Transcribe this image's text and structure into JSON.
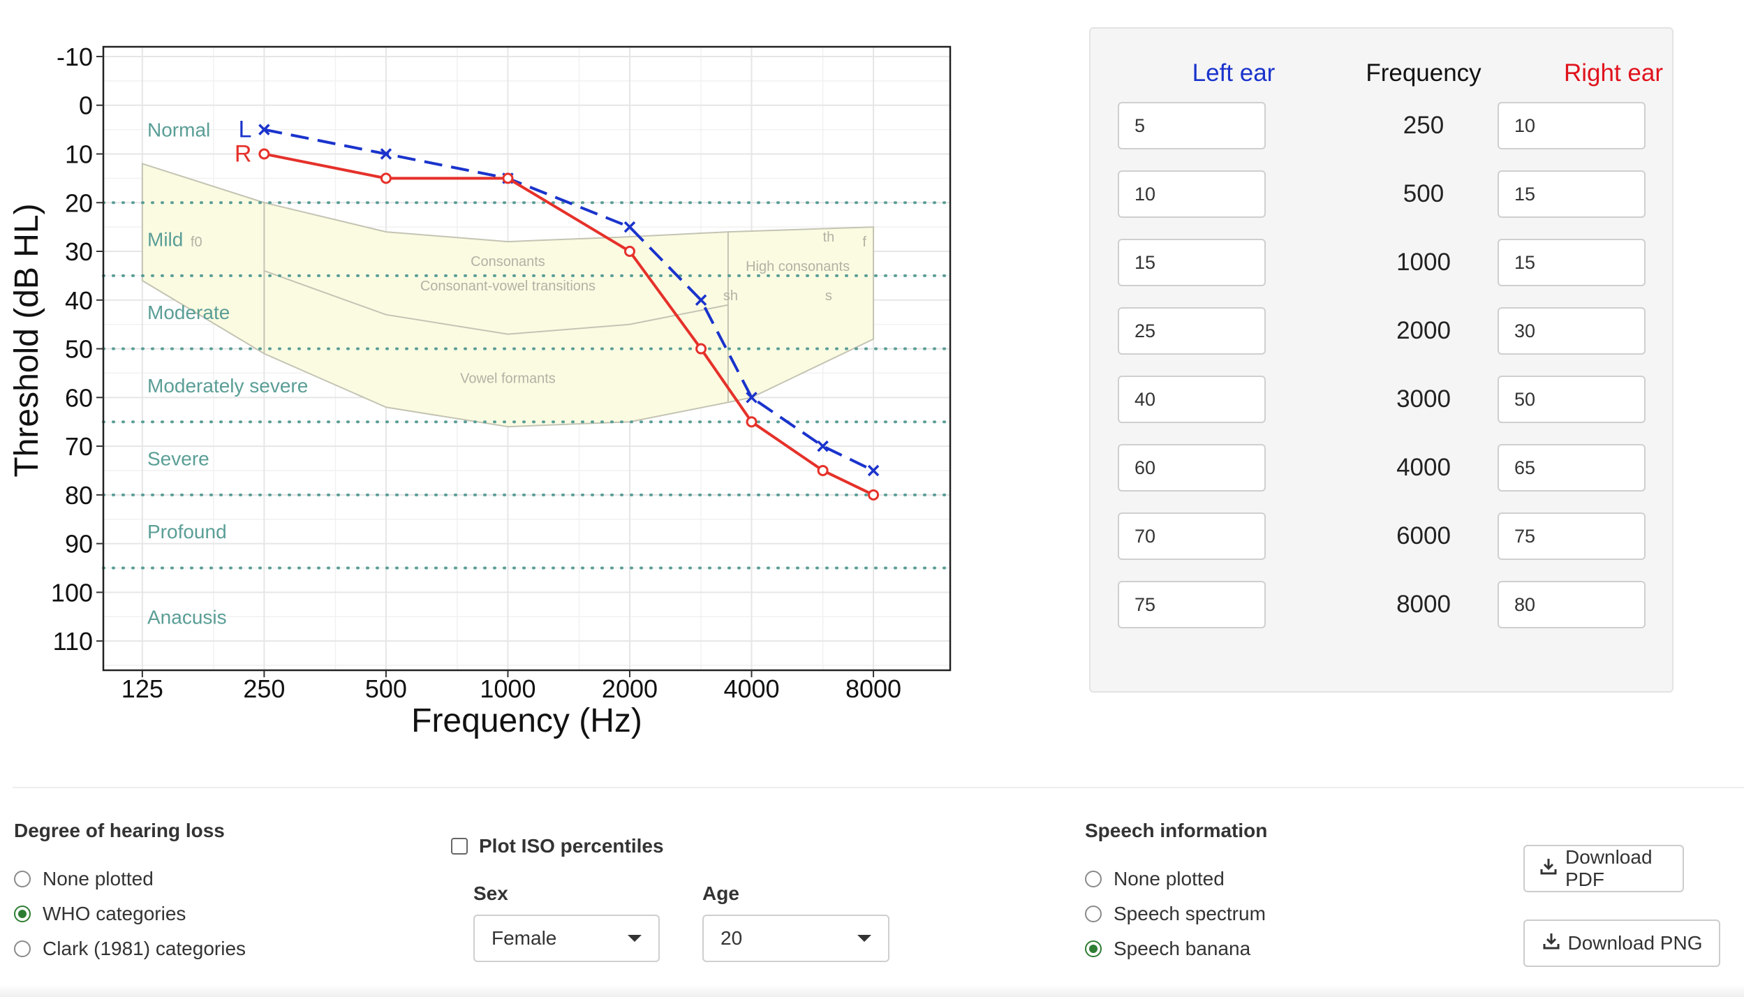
{
  "chart_data": {
    "type": "line",
    "xlabel": "Frequency (Hz)",
    "ylabel": "Threshold (dB HL)",
    "x_scale": "log",
    "x_ticks": [
      125,
      250,
      500,
      1000,
      2000,
      4000,
      8000
    ],
    "x_tick_labels": [
      "125",
      "250",
      "500",
      "1000",
      "2000",
      "4000",
      "8000"
    ],
    "ylim": [
      -12,
      116
    ],
    "y_reversed": true,
    "y_ticks": [
      -10,
      0,
      10,
      20,
      30,
      40,
      50,
      60,
      70,
      80,
      90,
      100,
      110
    ],
    "y_tick_labels": [
      "-10",
      "0",
      "10",
      "20",
      "30",
      "40",
      "50",
      "60",
      "70",
      "80",
      "90",
      "100",
      "110"
    ],
    "grid": true,
    "series": [
      {
        "name": "L",
        "color": "#1a33cc",
        "marker": "x",
        "dash": true,
        "x": [
          250,
          500,
          1000,
          2000,
          3000,
          4000,
          6000,
          8000
        ],
        "y": [
          5,
          10,
          15,
          25,
          40,
          60,
          70,
          75
        ]
      },
      {
        "name": "R",
        "color": "#e5312a",
        "marker": "o",
        "dash": false,
        "x": [
          250,
          500,
          1000,
          2000,
          3000,
          4000,
          6000,
          8000
        ],
        "y": [
          10,
          15,
          15,
          30,
          50,
          65,
          75,
          80
        ]
      }
    ],
    "category_lines": [
      20,
      35,
      50,
      65,
      80,
      95
    ],
    "categories": [
      {
        "label": "Normal",
        "y": 5
      },
      {
        "label": "Mild",
        "y": 27.5
      },
      {
        "label": "Moderate",
        "y": 42.5
      },
      {
        "label": "Moderately severe",
        "y": 57.5
      },
      {
        "label": "Severe",
        "y": 72.5
      },
      {
        "label": "Profound",
        "y": 87.5
      },
      {
        "label": "Anacusis",
        "y": 105
      }
    ],
    "speech_labels": [
      {
        "text": "f0",
        "x": 170,
        "y": 28
      },
      {
        "text": "Consonants",
        "x": 1000,
        "y": 32
      },
      {
        "text": "Consonant-vowel transitions",
        "x": 1000,
        "y": 37
      },
      {
        "text": "Vowel formants",
        "x": 1000,
        "y": 56
      },
      {
        "text": "High consonants",
        "x": 5200,
        "y": 33
      },
      {
        "text": "th",
        "x": 6200,
        "y": 27
      },
      {
        "text": "f",
        "x": 7600,
        "y": 28
      },
      {
        "text": "sh",
        "x": 3550,
        "y": 39
      },
      {
        "text": "s",
        "x": 6200,
        "y": 39
      }
    ],
    "banana_regions": [
      {
        "name": "outer",
        "points": [
          [
            125,
            12
          ],
          [
            250,
            20
          ],
          [
            500,
            26
          ],
          [
            1000,
            28
          ],
          [
            2000,
            27
          ],
          [
            3500,
            26
          ],
          [
            8000,
            25
          ],
          [
            8000,
            48
          ],
          [
            4000,
            60
          ],
          [
            3500,
            61
          ],
          [
            2000,
            65
          ],
          [
            1000,
            66
          ],
          [
            500,
            62
          ],
          [
            250,
            51
          ],
          [
            125,
            36
          ]
        ]
      },
      {
        "name": "middle",
        "points": [
          [
            250,
            34
          ],
          [
            500,
            43
          ],
          [
            1000,
            47
          ],
          [
            2000,
            45
          ],
          [
            3500,
            41
          ]
        ]
      }
    ],
    "banana_dividers": [
      250,
      3500
    ]
  },
  "panel": {
    "left_ear_header": "Left ear",
    "frequency_header": "Frequency",
    "right_ear_header": "Right ear",
    "frequencies": [
      "250",
      "500",
      "1000",
      "2000",
      "3000",
      "4000",
      "6000",
      "8000"
    ],
    "left_values": [
      "5",
      "10",
      "15",
      "25",
      "40",
      "60",
      "70",
      "75"
    ],
    "right_values": [
      "10",
      "15",
      "15",
      "30",
      "50",
      "65",
      "75",
      "80"
    ]
  },
  "controls": {
    "degree_title": "Degree of hearing loss",
    "degree_options": [
      "None plotted",
      "WHO categories",
      "Clark (1981) categories"
    ],
    "degree_selected": 1,
    "iso_label": "Plot ISO percentiles",
    "iso_checked": false,
    "sex_label": "Sex",
    "sex_value": "Female",
    "age_label": "Age",
    "age_value": "20",
    "speech_title": "Speech information",
    "speech_options": [
      "None plotted",
      "Speech spectrum",
      "Speech banana"
    ],
    "speech_selected": 2,
    "download_pdf": "Download PDF",
    "download_png": "Download PNG",
    "download_icon": "download-icon"
  }
}
